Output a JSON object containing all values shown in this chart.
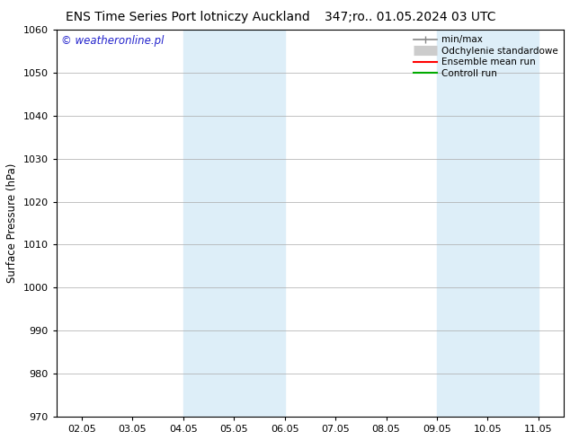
{
  "title_left": "ENS Time Series Port lotniczy Auckland",
  "title_right": "347;ro.. 01.05.2024 03 UTC",
  "ylabel": "Surface Pressure (hPa)",
  "watermark": "© weatheronline.pl",
  "ylim": [
    970,
    1060
  ],
  "yticks": [
    970,
    980,
    990,
    1000,
    1010,
    1020,
    1030,
    1040,
    1050,
    1060
  ],
  "xtick_labels": [
    "02.05",
    "03.05",
    "04.05",
    "05.05",
    "06.05",
    "07.05",
    "08.05",
    "09.05",
    "10.05",
    "11.05"
  ],
  "xtick_positions": [
    0,
    1,
    2,
    3,
    4,
    5,
    6,
    7,
    8,
    9
  ],
  "xlim": [
    -0.5,
    9.5
  ],
  "shade_bands": [
    {
      "x_start": 2,
      "x_end": 4,
      "color": "#ddeef8"
    },
    {
      "x_start": 7,
      "x_end": 9,
      "color": "#ddeef8"
    }
  ],
  "legend_entries": [
    {
      "label": "min/max",
      "color": "#888888",
      "lw": 1.2
    },
    {
      "label": "Odchylenie standardowe",
      "color": "#cccccc",
      "lw": 8
    },
    {
      "label": "Ensemble mean run",
      "color": "#ff0000",
      "lw": 1.5
    },
    {
      "label": "Controll run",
      "color": "#00aa00",
      "lw": 1.5
    }
  ],
  "bg_color": "#ffffff",
  "plot_bg_color": "#ffffff",
  "title_fontsize": 10,
  "tick_fontsize": 8,
  "ylabel_fontsize": 8.5,
  "watermark_color": "#2222cc",
  "watermark_fontsize": 8.5
}
